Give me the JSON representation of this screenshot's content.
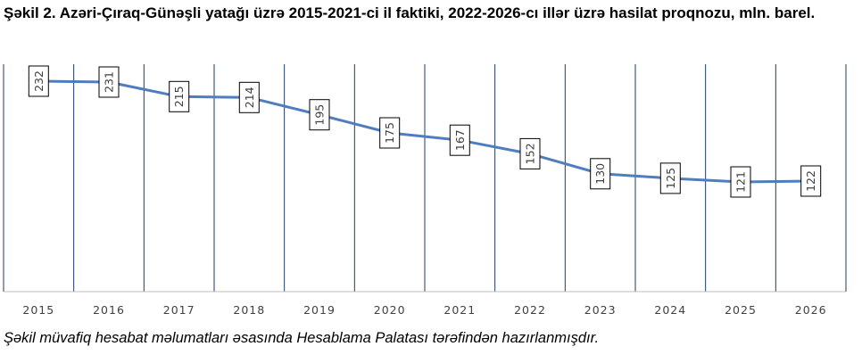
{
  "title": "Şəkil 2. Azəri-Çıraq-Günəşli yatağı üzrə 2015-2021-ci il faktiki, 2022-2026-cı illər üzrə hasilat proqnozu, mln. barel.",
  "source_note": "Şəkil müvafiq hesabat məlumatları əsasında Hesablama Palatası tərəfindən hazırlanmışdır.",
  "chart_data": {
    "type": "line",
    "categories": [
      "2015",
      "2016",
      "2017",
      "2018",
      "2019",
      "2020",
      "2021",
      "2022",
      "2023",
      "2024",
      "2025",
      "2026"
    ],
    "series": [
      {
        "values": [
          232,
          231,
          215,
          214,
          195,
          175,
          167,
          152,
          130,
          125,
          121,
          122
        ]
      }
    ],
    "data_labels": [
      "232",
      "231",
      "215",
      "214",
      "195",
      "175",
      "167",
      "152",
      "130",
      "125",
      "121",
      "122"
    ],
    "line_color": "#4f7dbf",
    "gridline_color": "#1f3864",
    "grid": "vertical"
  }
}
